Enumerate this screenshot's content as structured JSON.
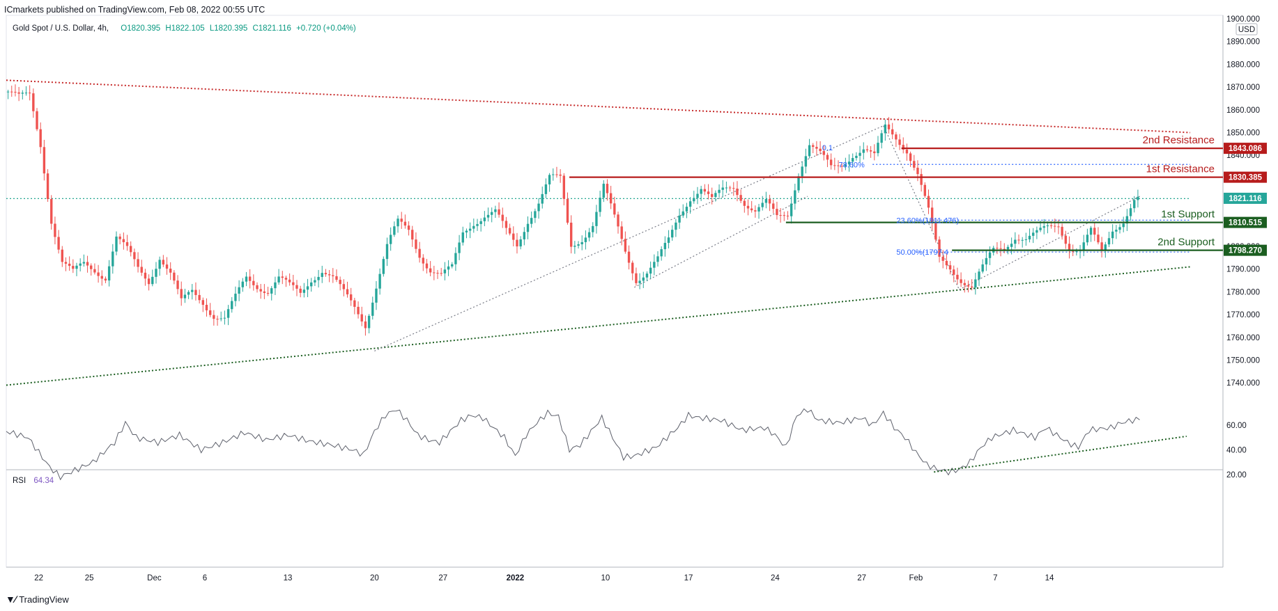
{
  "header": {
    "publisher": "ICmarkets published on TradingView.com, Feb 08, 2022 00:55 UTC",
    "symbol": "Gold Spot / U.S. Dollar, 4h,",
    "open": "O1820.395",
    "high": "H1822.105",
    "low": "L1820.395",
    "close": "C1821.116",
    "change": "+0.720 (+0.04%)"
  },
  "footer": {
    "brand": "TradingView",
    "logo": "tradingview-logo-icon"
  },
  "colors": {
    "up": "#26a69a",
    "down": "#ef5350",
    "resistance": "#b71c1c",
    "support": "#1b5e20",
    "fib": "#2962ff"
  },
  "chart_data": [
    {
      "type": "candlestick",
      "currency": "USD",
      "ylim": [
        1735,
        1900
      ],
      "y_ticks": [
        "1900.000",
        "1890.000",
        "1880.000",
        "1870.000",
        "1860.000",
        "1850.000",
        "1840.000",
        "1830.000",
        "1820.000",
        "1810.000",
        "1800.000",
        "1790.000",
        "1780.000",
        "1770.000",
        "1760.000",
        "1750.000",
        "1740.000"
      ],
      "x_ticks": [
        "22",
        "25",
        "Dec",
        "6",
        "13",
        "20",
        "27",
        "2022",
        "10",
        "17",
        "24",
        "27",
        "Feb",
        "7",
        "14"
      ],
      "last_price": "1821.116",
      "price_path": [
        [
          0,
          1868
        ],
        [
          3,
          1865
        ],
        [
          6,
          1866
        ],
        [
          9,
          1845
        ],
        [
          12,
          1812
        ],
        [
          15,
          1793
        ],
        [
          18,
          1788
        ],
        [
          21,
          1792
        ],
        [
          24,
          1790
        ],
        [
          27,
          1787
        ],
        [
          30,
          1804
        ],
        [
          33,
          1798
        ],
        [
          36,
          1790
        ],
        [
          39,
          1785
        ],
        [
          42,
          1796
        ],
        [
          45,
          1788
        ],
        [
          48,
          1775
        ],
        [
          51,
          1780
        ],
        [
          54,
          1776
        ],
        [
          57,
          1770
        ],
        [
          60,
          1768
        ],
        [
          63,
          1777
        ],
        [
          66,
          1786
        ],
        [
          69,
          1783
        ],
        [
          72,
          1781
        ],
        [
          75,
          1786
        ],
        [
          78,
          1782
        ],
        [
          81,
          1779
        ],
        [
          84,
          1786
        ],
        [
          87,
          1790
        ],
        [
          90,
          1786
        ],
        [
          93,
          1779
        ],
        [
          96,
          1773
        ],
        [
          99,
          1766
        ],
        [
          102,
          1783
        ],
        [
          105,
          1800
        ],
        [
          108,
          1810
        ],
        [
          111,
          1807
        ],
        [
          114,
          1797
        ],
        [
          117,
          1790
        ],
        [
          120,
          1787
        ],
        [
          123,
          1790
        ],
        [
          126,
          1806
        ],
        [
          129,
          1811
        ],
        [
          132,
          1814
        ],
        [
          135,
          1815
        ],
        [
          138,
          1806
        ],
        [
          141,
          1800
        ],
        [
          144,
          1812
        ],
        [
          147,
          1820
        ],
        [
          150,
          1830
        ],
        [
          153,
          1829
        ],
        [
          156,
          1800
        ],
        [
          159,
          1804
        ],
        [
          162,
          1810
        ],
        [
          165,
          1826
        ],
        [
          168,
          1812
        ],
        [
          171,
          1798
        ],
        [
          174,
          1786
        ],
        [
          177,
          1789
        ],
        [
          180,
          1794
        ],
        [
          183,
          1802
        ],
        [
          186,
          1814
        ],
        [
          189,
          1822
        ],
        [
          192,
          1826
        ],
        [
          195,
          1820
        ],
        [
          198,
          1824
        ],
        [
          201,
          1826
        ],
        [
          204,
          1820
        ],
        [
          207,
          1816
        ],
        [
          210,
          1819
        ],
        [
          213,
          1812
        ],
        [
          216,
          1814
        ],
        [
          219,
          1833
        ],
        [
          222,
          1845
        ],
        [
          225,
          1840
        ],
        [
          228,
          1834
        ],
        [
          231,
          1836
        ],
        [
          234,
          1841
        ],
        [
          237,
          1843
        ],
        [
          240,
          1839
        ],
        [
          243,
          1852
        ],
        [
          246,
          1848
        ],
        [
          249,
          1843
        ],
        [
          252,
          1832
        ],
        [
          255,
          1815
        ],
        [
          258,
          1794
        ],
        [
          261,
          1791
        ],
        [
          264,
          1786
        ],
        [
          267,
          1782
        ],
        [
          270,
          1790
        ],
        [
          273,
          1798
        ],
        [
          276,
          1800
        ],
        [
          279,
          1805
        ],
        [
          282,
          1803
        ],
        [
          285,
          1805
        ],
        [
          288,
          1808
        ],
        [
          291,
          1810
        ],
        [
          294,
          1800
        ],
        [
          297,
          1798
        ],
        [
          300,
          1806
        ],
        [
          303,
          1797
        ],
        [
          306,
          1808
        ],
        [
          309,
          1812
        ],
        [
          312,
          1820
        ],
        [
          314,
          1821.116
        ]
      ],
      "lines": [
        {
          "name": "descending-trendline",
          "style": "dotted",
          "color": "#c62828",
          "from": [
            0,
            1873
          ],
          "to": [
            328,
            1850
          ]
        },
        {
          "name": "ascending-trendline",
          "style": "dotted",
          "color": "#1b5e20",
          "from": [
            0,
            1739
          ],
          "to": [
            328,
            1791
          ]
        },
        {
          "name": "current-price-line",
          "style": "dotted",
          "color": "#089981",
          "from": [
            0,
            1821
          ],
          "to": [
            328,
            1821
          ]
        },
        {
          "name": "fib-78-line",
          "style": "dotted",
          "color": "#2962ff",
          "from": [
            240,
            1836
          ],
          "to": [
            328,
            1836
          ]
        },
        {
          "name": "fib-23-line",
          "style": "dotted",
          "color": "#2962ff",
          "from": [
            252,
            1811.5
          ],
          "to": [
            328,
            1811.5
          ]
        },
        {
          "name": "fib-50-line",
          "style": "dotted",
          "color": "#2962ff",
          "from": [
            252,
            1797.5
          ],
          "to": [
            328,
            1797.5
          ]
        },
        {
          "name": "fib-diag-1",
          "style": "dotted",
          "color": "#787b86",
          "from": [
            102,
            1754
          ],
          "to": [
            243,
            1853
          ]
        },
        {
          "name": "fib-diag-2",
          "style": "dotted",
          "color": "#787b86",
          "from": [
            174,
            1782
          ],
          "to": [
            222,
            1822
          ]
        },
        {
          "name": "fib-diag-3",
          "style": "dotted",
          "color": "#787b86",
          "from": [
            243,
            1853
          ],
          "to": [
            264,
            1781
          ]
        },
        {
          "name": "fib-diag-4",
          "style": "dotted",
          "color": "#787b86",
          "from": [
            264,
            1781
          ],
          "to": [
            314,
            1822
          ]
        }
      ],
      "levels": [
        {
          "name": "2nd Resistance",
          "value": "1843.086",
          "y": 1843.086,
          "color": "#b71c1c",
          "from_x": 248
        },
        {
          "name": "1st Resistance",
          "value": "1830.385",
          "y": 1830.385,
          "color": "#b71c1c",
          "from_x": 156
        },
        {
          "name": "1st Support",
          "value": "1810.515",
          "y": 1810.515,
          "color": "#1b5e20",
          "from_x": 216
        },
        {
          "name": "2nd Support",
          "value": "1798.270",
          "y": 1798.27,
          "color": "#1b5e20",
          "from_x": 262
        }
      ],
      "fib_labels": [
        "78.60%",
        "23.60%(1811.476)",
        "50.00%(1797.4"
      ],
      "fib_partial": "0.1"
    },
    {
      "type": "line",
      "name": "RSI",
      "value_label": "64.34",
      "ylim": [
        12,
        75
      ],
      "y_ticks": [
        "60.00",
        "40.00",
        "20.00"
      ],
      "values": [
        [
          0,
          55
        ],
        [
          6,
          50
        ],
        [
          12,
          26
        ],
        [
          15,
          18
        ],
        [
          18,
          22
        ],
        [
          24,
          30
        ],
        [
          30,
          46
        ],
        [
          33,
          62
        ],
        [
          36,
          50
        ],
        [
          42,
          46
        ],
        [
          48,
          52
        ],
        [
          54,
          40
        ],
        [
          60,
          46
        ],
        [
          66,
          54
        ],
        [
          72,
          48
        ],
        [
          78,
          52
        ],
        [
          84,
          47
        ],
        [
          90,
          44
        ],
        [
          96,
          40
        ],
        [
          99,
          36
        ],
        [
          102,
          55
        ],
        [
          105,
          68
        ],
        [
          108,
          73
        ],
        [
          111,
          64
        ],
        [
          114,
          52
        ],
        [
          117,
          48
        ],
        [
          120,
          46
        ],
        [
          126,
          64
        ],
        [
          129,
          68
        ],
        [
          132,
          66
        ],
        [
          138,
          50
        ],
        [
          141,
          35
        ],
        [
          144,
          52
        ],
        [
          147,
          62
        ],
        [
          150,
          70
        ],
        [
          153,
          67
        ],
        [
          156,
          40
        ],
        [
          159,
          44
        ],
        [
          165,
          66
        ],
        [
          168,
          50
        ],
        [
          171,
          34
        ],
        [
          174,
          35
        ],
        [
          180,
          42
        ],
        [
          186,
          58
        ],
        [
          189,
          68
        ],
        [
          192,
          66
        ],
        [
          198,
          64
        ],
        [
          204,
          56
        ],
        [
          210,
          58
        ],
        [
          213,
          52
        ],
        [
          216,
          42
        ],
        [
          219,
          68
        ],
        [
          222,
          73
        ],
        [
          225,
          64
        ],
        [
          231,
          62
        ],
        [
          237,
          66
        ],
        [
          240,
          60
        ],
        [
          243,
          70
        ],
        [
          246,
          58
        ],
        [
          249,
          50
        ],
        [
          252,
          38
        ],
        [
          255,
          28
        ],
        [
          258,
          24
        ],
        [
          261,
          22
        ],
        [
          264,
          24
        ],
        [
          267,
          30
        ],
        [
          270,
          42
        ],
        [
          273,
          50
        ],
        [
          279,
          56
        ],
        [
          285,
          50
        ],
        [
          288,
          58
        ],
        [
          294,
          46
        ],
        [
          297,
          42
        ],
        [
          300,
          56
        ],
        [
          306,
          58
        ],
        [
          309,
          62
        ],
        [
          312,
          64
        ],
        [
          314,
          64.34
        ]
      ],
      "trendline": {
        "from": [
          257,
          22
        ],
        "to": [
          327,
          51
        ]
      }
    }
  ]
}
